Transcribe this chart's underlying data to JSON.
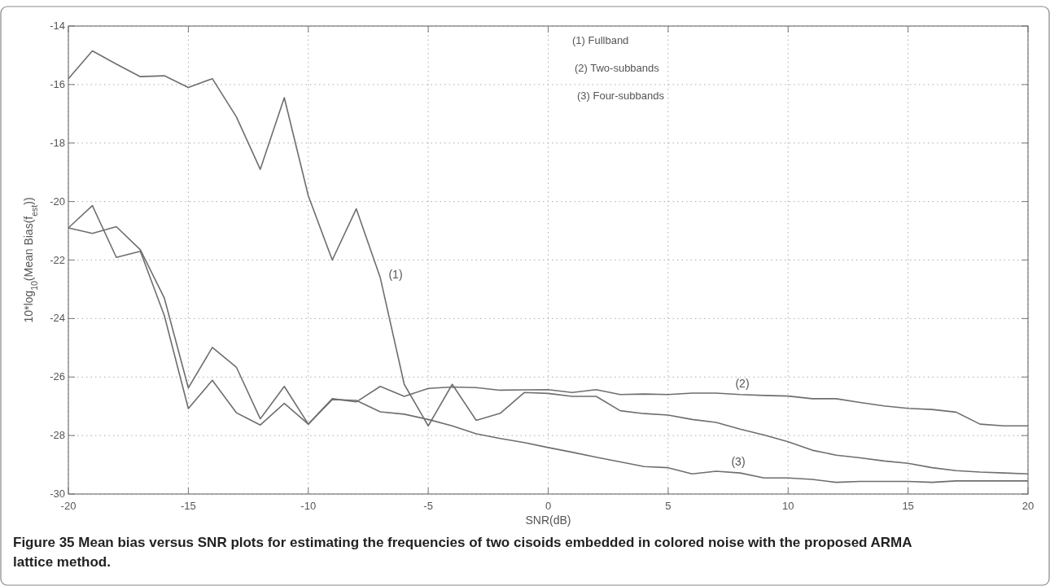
{
  "chart_data": {
    "type": "line",
    "xlabel": "SNR(dB)",
    "ylabel": "10*log$_{10}$(Mean Bias(f$_{est}$))",
    "x": [
      -20,
      -19,
      -18,
      -17,
      -16,
      -15,
      -14,
      -13,
      -12,
      -11,
      -10,
      -9,
      -8,
      -7,
      -6,
      -5,
      -4,
      -3,
      -2,
      -1,
      0,
      1,
      2,
      3,
      4,
      5,
      6,
      7,
      8,
      9,
      10,
      11,
      12,
      13,
      14,
      15,
      16,
      17,
      18,
      19,
      20
    ],
    "series": [
      {
        "color": "#6e6e6e",
        "values": [
          -15.8,
          -14.85,
          -15.3,
          -15.73,
          -15.7,
          -16.1,
          -15.8,
          -17.1,
          -18.9,
          -16.45,
          -19.8,
          -22.0,
          -20.25,
          -22.6,
          -26.25,
          -27.67,
          -26.25,
          -27.48,
          -27.24,
          -26.53,
          -26.56,
          -26.66,
          -26.66,
          -27.15,
          -27.25,
          -27.3,
          -27.45,
          -27.55,
          -27.78,
          -27.98,
          -28.21,
          -28.5,
          -28.67,
          -28.76,
          -28.87,
          -28.95,
          -29.1,
          -29.2,
          -29.25,
          -29.28,
          -29.31
        ]
      },
      {
        "color": "#6e6e6e",
        "values": [
          -20.9,
          -21.09,
          -20.86,
          -21.65,
          -23.3,
          -26.37,
          -24.99,
          -25.66,
          -27.43,
          -26.32,
          -27.61,
          -26.74,
          -26.85,
          -26.32,
          -26.66,
          -26.39,
          -26.34,
          -26.36,
          -26.45,
          -26.44,
          -26.43,
          -26.53,
          -26.43,
          -26.6,
          -26.58,
          -26.6,
          -26.55,
          -26.55,
          -26.6,
          -26.63,
          -26.65,
          -26.74,
          -26.74,
          -26.87,
          -26.99,
          -27.07,
          -27.11,
          -27.2,
          -27.61,
          -27.67,
          -27.67
        ]
      },
      {
        "color": "#6e6e6e",
        "values": [
          -20.9,
          -20.14,
          -21.91,
          -21.7,
          -23.9,
          -27.08,
          -26.11,
          -27.22,
          -27.64,
          -26.9,
          -27.61,
          -26.77,
          -26.8,
          -27.19,
          -27.27,
          -27.45,
          -27.67,
          -27.94,
          -28.1,
          -28.24,
          -28.41,
          -28.57,
          -28.74,
          -28.9,
          -29.06,
          -29.1,
          -29.31,
          -29.22,
          -29.28,
          -29.45,
          -29.45,
          -29.5,
          -29.6,
          -29.57,
          -29.57,
          -29.57,
          -29.6,
          -29.55,
          -29.55,
          -29.55,
          -29.55
        ]
      }
    ],
    "xlim": [
      -20,
      20
    ],
    "xticks": [
      -20,
      -15,
      -10,
      -5,
      0,
      5,
      10,
      15,
      20
    ],
    "ylim": [
      -30,
      -14
    ],
    "yticks": [
      -30,
      -28,
      -26,
      -24,
      -22,
      -20,
      -18,
      -16,
      -14
    ],
    "grid": true,
    "marker": "none",
    "line_style": "solid",
    "annotations": [
      "(1) Fullband",
      "(2) Two-subbands",
      "(3) Four-subbands",
      "(1)",
      "(2)",
      "(3)",
      "Figure 35 Mean bias versus SNR plots for estimating the frequencies of two cisoids embedded in colored noise with the proposed ARMA lattice method."
    ]
  }
}
